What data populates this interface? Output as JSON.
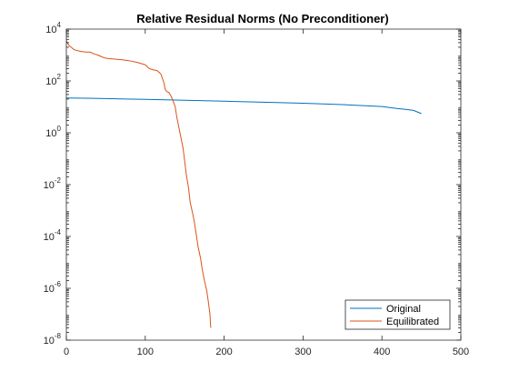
{
  "chart_data": {
    "type": "line",
    "title": "Relative Residual Norms (No Preconditioner)",
    "xlabel": "",
    "ylabel": "",
    "xlim": [
      0,
      500
    ],
    "ylim": [
      1e-08,
      10000
    ],
    "yscale": "log",
    "xticks": [
      0,
      100,
      200,
      300,
      400,
      500
    ],
    "yticks": [
      {
        "value": 1e-08,
        "base": "10",
        "exp": "-8"
      },
      {
        "value": 1e-06,
        "base": "10",
        "exp": "-6"
      },
      {
        "value": 0.0001,
        "base": "10",
        "exp": "-4"
      },
      {
        "value": 0.01,
        "base": "10",
        "exp": "-2"
      },
      {
        "value": 1,
        "base": "10",
        "exp": "0"
      },
      {
        "value": 100,
        "base": "10",
        "exp": "2"
      },
      {
        "value": 10000,
        "base": "10",
        "exp": "4"
      }
    ],
    "grid": false,
    "legend_position": "bottom-right",
    "series": [
      {
        "name": "Original",
        "color": "#0072BD",
        "x": [
          0,
          25,
          50,
          75,
          100,
          150,
          200,
          250,
          300,
          350,
          400,
          420,
          430,
          440,
          450
        ],
        "y": [
          22,
          21.5,
          21,
          20,
          19.5,
          18,
          16.5,
          15.2,
          13.8,
          12.2,
          10.3,
          8.6,
          8,
          7.3,
          5.5
        ]
      },
      {
        "name": "Equilibrated",
        "color": "#D95319",
        "x": [
          0,
          3,
          6,
          10,
          15,
          20,
          25,
          30,
          35,
          40,
          45,
          50,
          60,
          70,
          80,
          90,
          100,
          105,
          110,
          115,
          118,
          120,
          122,
          124,
          125,
          127,
          128,
          130,
          133,
          135,
          138,
          140,
          142,
          145,
          148,
          150,
          152,
          155,
          157,
          160,
          162,
          165,
          167,
          170,
          172,
          175,
          178,
          180,
          182,
          183
        ],
        "y": [
          3500,
          2400,
          2000,
          1600,
          1450,
          1350,
          1300,
          1300,
          1100,
          1000,
          850,
          750,
          700,
          660,
          600,
          520,
          420,
          300,
          270,
          250,
          210,
          180,
          120,
          80,
          50,
          40,
          38,
          36,
          25,
          18,
          10,
          4,
          2,
          0.7,
          0.25,
          0.08,
          0.025,
          0.007,
          0.002,
          0.0008,
          0.0004,
          0.0001,
          4e-05,
          1.5e-05,
          6e-06,
          2e-06,
          8e-07,
          3e-07,
          1e-07,
          3e-08
        ]
      }
    ]
  }
}
